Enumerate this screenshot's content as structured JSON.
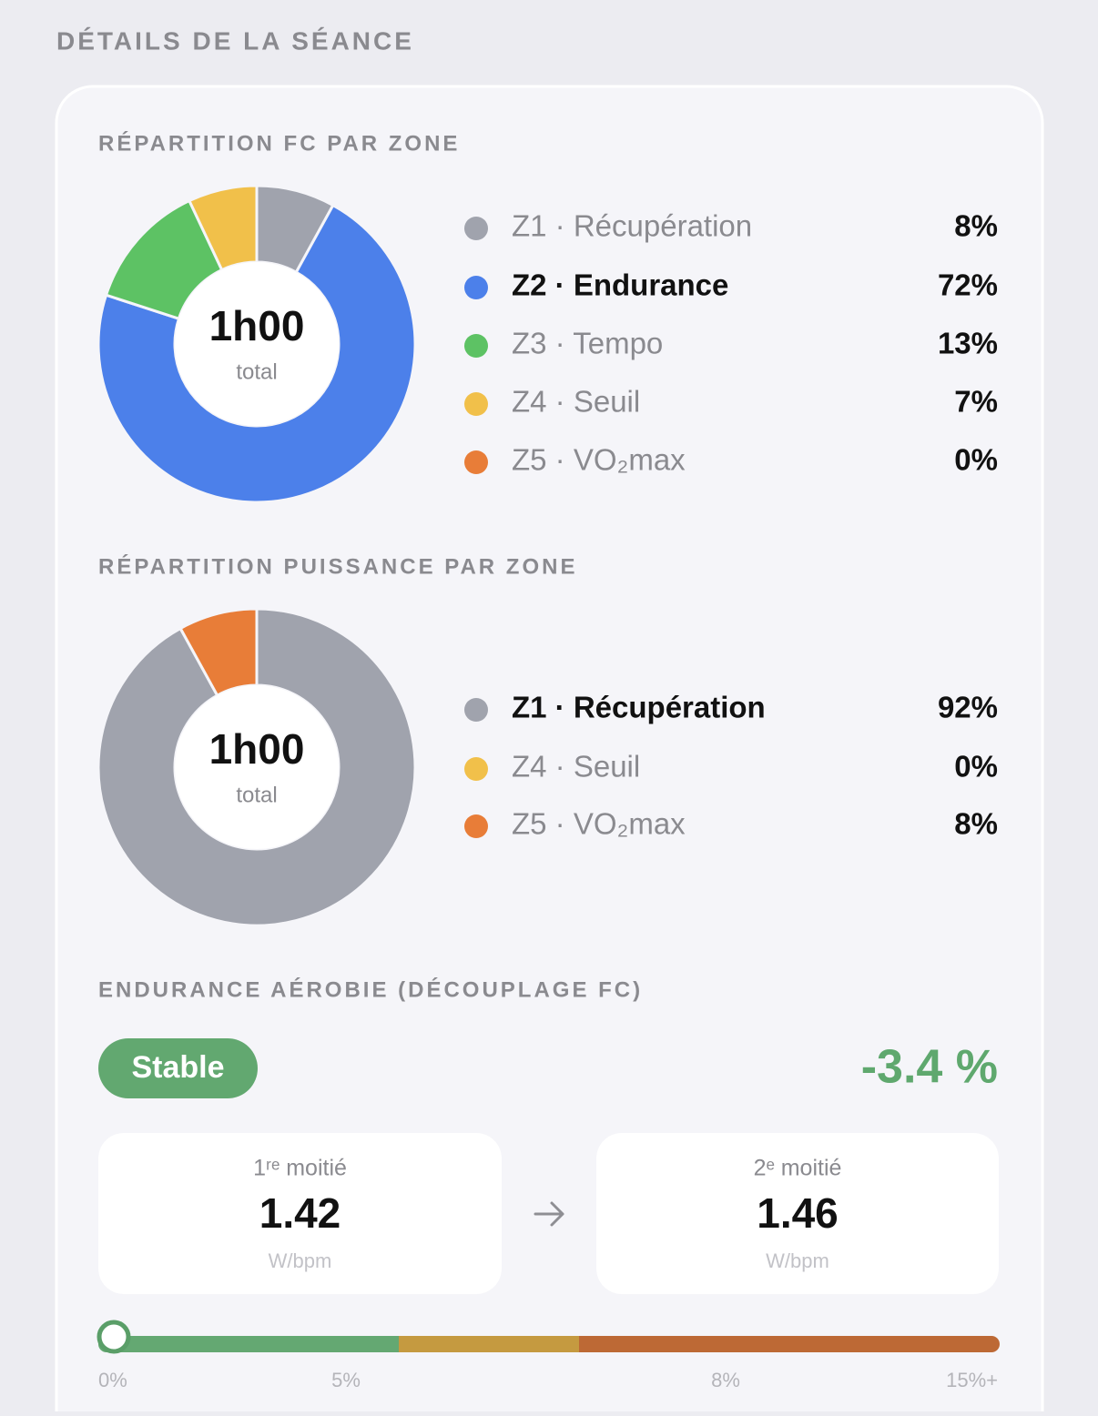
{
  "section_title": "DÉTAILS DE LA SÉANCE",
  "hr_distribution": {
    "title": "RÉPARTITION FC PAR ZONE",
    "center_value": "1h00",
    "center_label": "total",
    "zones": [
      {
        "label": "Z1 · Récupération",
        "value": 8,
        "value_label": "8%",
        "color": "#a0a3ad"
      },
      {
        "label": "Z2 · Endurance",
        "value": 72,
        "value_label": "72%",
        "color": "#4c80ea"
      },
      {
        "label": "Z3 · Tempo",
        "value": 13,
        "value_label": "13%",
        "color": "#5dc264"
      },
      {
        "label": "Z4 · Seuil",
        "value": 7,
        "value_label": "7%",
        "color": "#f1c04a"
      },
      {
        "label": "Z5 · VO₂max",
        "value": 0,
        "value_label": "0%",
        "color": "#e87d38"
      }
    ]
  },
  "power_distribution": {
    "title": "RÉPARTITION PUISSANCE PAR ZONE",
    "center_value": "1h00",
    "center_label": "total",
    "zones": [
      {
        "label": "Z1 · Récupération",
        "value": 92,
        "value_label": "92%",
        "color": "#a0a3ad"
      },
      {
        "label": "Z4 · Seuil",
        "value": 0,
        "value_label": "0%",
        "color": "#f1c04a"
      },
      {
        "label": "Z5 · VO₂max",
        "value": 8,
        "value_label": "8%",
        "color": "#e87d38"
      }
    ]
  },
  "aerobic": {
    "title": "ENDURANCE AÉROBIE (DÉCOUPLAGE FC)",
    "status": "Stable",
    "decoupling": "-3.4 %",
    "first_half": {
      "label": "1ʳᵉ moitié",
      "value": 1.42,
      "unit": "W/bpm"
    },
    "second_half": {
      "label": "2ᵉ moitié",
      "value": 1.46,
      "unit": "W/bpm"
    },
    "scale_labels": [
      "0%",
      "5%",
      "8%",
      "15%+"
    ]
  }
}
